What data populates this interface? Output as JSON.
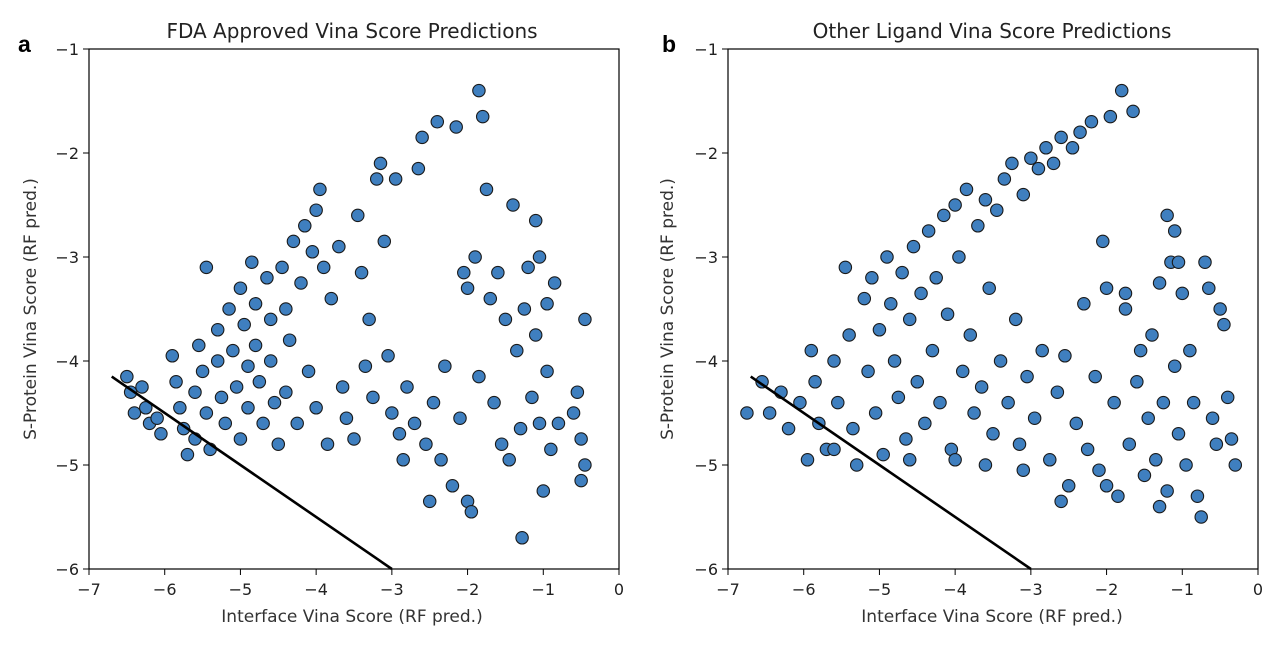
{
  "chart_data": [
    {
      "type": "scatter",
      "panel_letter": "a",
      "title": "FDA Approved Vina Score Predictions",
      "xlabel": "Interface Vina Score (RF pred.)",
      "ylabel": "S-Protein Vina Score (RF pred.)",
      "xlim": [
        -7,
        0
      ],
      "ylim": [
        -6,
        -1
      ],
      "xticks": [
        -7,
        -6,
        -5,
        -4,
        -3,
        -2,
        -1,
        0
      ],
      "xtick_labels": [
        "−7",
        "−6",
        "−5",
        "−4",
        "−3",
        "−2",
        "−1",
        "0"
      ],
      "yticks": [
        -6,
        -5,
        -4,
        -3,
        -2,
        -1
      ],
      "ytick_labels": [
        "−6",
        "−5",
        "−4",
        "−3",
        "−2",
        "−1"
      ],
      "grid": false,
      "marker_color": "#3f7fbf",
      "marker_edge": "#1a1a1a",
      "line": {
        "x": [
          -6.7,
          -3.0
        ],
        "y": [
          -4.15,
          -6.0
        ],
        "color": "#000000"
      },
      "points": [
        [
          -6.5,
          -4.15
        ],
        [
          -6.45,
          -4.3
        ],
        [
          -6.4,
          -4.5
        ],
        [
          -6.3,
          -4.25
        ],
        [
          -6.25,
          -4.45
        ],
        [
          -6.2,
          -4.6
        ],
        [
          -6.1,
          -4.55
        ],
        [
          -6.05,
          -4.7
        ],
        [
          -5.9,
          -3.95
        ],
        [
          -5.85,
          -4.2
        ],
        [
          -5.8,
          -4.45
        ],
        [
          -5.75,
          -4.65
        ],
        [
          -5.7,
          -4.9
        ],
        [
          -5.6,
          -4.75
        ],
        [
          -5.6,
          -4.3
        ],
        [
          -5.55,
          -3.85
        ],
        [
          -5.5,
          -4.1
        ],
        [
          -5.45,
          -3.1
        ],
        [
          -5.45,
          -4.5
        ],
        [
          -5.4,
          -4.85
        ],
        [
          -5.3,
          -3.7
        ],
        [
          -5.3,
          -4.0
        ],
        [
          -5.25,
          -4.35
        ],
        [
          -5.2,
          -4.6
        ],
        [
          -5.15,
          -3.5
        ],
        [
          -5.1,
          -3.9
        ],
        [
          -5.05,
          -4.25
        ],
        [
          -5.0,
          -4.75
        ],
        [
          -5.0,
          -3.3
        ],
        [
          -4.95,
          -3.65
        ],
        [
          -4.9,
          -4.05
        ],
        [
          -4.9,
          -4.45
        ],
        [
          -4.85,
          -3.05
        ],
        [
          -4.8,
          -3.45
        ],
        [
          -4.8,
          -3.85
        ],
        [
          -4.75,
          -4.2
        ],
        [
          -4.7,
          -4.6
        ],
        [
          -4.65,
          -3.2
        ],
        [
          -4.6,
          -3.6
        ],
        [
          -4.6,
          -4.0
        ],
        [
          -4.55,
          -4.4
        ],
        [
          -4.5,
          -4.8
        ],
        [
          -4.45,
          -3.1
        ],
        [
          -4.4,
          -3.5
        ],
        [
          -4.4,
          -4.3
        ],
        [
          -4.35,
          -3.8
        ],
        [
          -4.3,
          -2.85
        ],
        [
          -4.25,
          -4.6
        ],
        [
          -4.2,
          -3.25
        ],
        [
          -4.15,
          -2.7
        ],
        [
          -4.1,
          -4.1
        ],
        [
          -4.05,
          -2.95
        ],
        [
          -4.0,
          -2.55
        ],
        [
          -4.0,
          -4.45
        ],
        [
          -3.95,
          -2.35
        ],
        [
          -3.9,
          -3.1
        ],
        [
          -3.85,
          -4.8
        ],
        [
          -3.8,
          -3.4
        ],
        [
          -3.7,
          -2.9
        ],
        [
          -3.65,
          -4.25
        ],
        [
          -3.6,
          -4.55
        ],
        [
          -3.5,
          -4.75
        ],
        [
          -3.45,
          -2.6
        ],
        [
          -3.4,
          -3.15
        ],
        [
          -3.35,
          -4.05
        ],
        [
          -3.3,
          -3.6
        ],
        [
          -3.25,
          -4.35
        ],
        [
          -3.2,
          -2.25
        ],
        [
          -3.15,
          -2.1
        ],
        [
          -3.1,
          -2.85
        ],
        [
          -3.05,
          -3.95
        ],
        [
          -3.0,
          -4.5
        ],
        [
          -2.95,
          -2.25
        ],
        [
          -2.9,
          -4.7
        ],
        [
          -2.85,
          -4.95
        ],
        [
          -2.8,
          -4.25
        ],
        [
          -2.7,
          -4.6
        ],
        [
          -2.65,
          -2.15
        ],
        [
          -2.6,
          -1.85
        ],
        [
          -2.55,
          -4.8
        ],
        [
          -2.5,
          -5.35
        ],
        [
          -2.45,
          -4.4
        ],
        [
          -2.4,
          -1.7
        ],
        [
          -2.35,
          -4.95
        ],
        [
          -2.3,
          -4.05
        ],
        [
          -2.2,
          -5.2
        ],
        [
          -2.15,
          -1.75
        ],
        [
          -2.1,
          -4.55
        ],
        [
          -2.05,
          -3.15
        ],
        [
          -2.0,
          -3.3
        ],
        [
          -2.0,
          -5.35
        ],
        [
          -1.95,
          -5.45
        ],
        [
          -1.9,
          -3.0
        ],
        [
          -1.85,
          -1.4
        ],
        [
          -1.85,
          -4.15
        ],
        [
          -1.8,
          -1.65
        ],
        [
          -1.75,
          -2.35
        ],
        [
          -1.7,
          -3.4
        ],
        [
          -1.65,
          -4.4
        ],
        [
          -1.6,
          -3.15
        ],
        [
          -1.55,
          -4.8
        ],
        [
          -1.5,
          -3.6
        ],
        [
          -1.45,
          -4.95
        ],
        [
          -1.4,
          -2.5
        ],
        [
          -1.35,
          -3.9
        ],
        [
          -1.3,
          -4.65
        ],
        [
          -1.28,
          -5.7
        ],
        [
          -1.25,
          -3.5
        ],
        [
          -1.2,
          -3.1
        ],
        [
          -1.15,
          -4.35
        ],
        [
          -1.1,
          -2.65
        ],
        [
          -1.1,
          -3.75
        ],
        [
          -1.05,
          -4.6
        ],
        [
          -1.05,
          -3.0
        ],
        [
          -1.0,
          -5.25
        ],
        [
          -0.95,
          -4.1
        ],
        [
          -0.95,
          -3.45
        ],
        [
          -0.9,
          -4.85
        ],
        [
          -0.85,
          -3.25
        ],
        [
          -0.8,
          -4.6
        ],
        [
          -0.6,
          -4.5
        ],
        [
          -0.55,
          -4.3
        ],
        [
          -0.5,
          -4.75
        ],
        [
          -0.5,
          -5.15
        ],
        [
          -0.45,
          -3.6
        ],
        [
          -0.45,
          -5.0
        ]
      ]
    },
    {
      "type": "scatter",
      "panel_letter": "b",
      "title": "Other Ligand Vina Score Predictions",
      "xlabel": "Interface Vina Score (RF pred.)",
      "ylabel": "S-Protein Vina Score (RF pred.)",
      "xlim": [
        -7,
        0
      ],
      "ylim": [
        -6,
        -1
      ],
      "xticks": [
        -7,
        -6,
        -5,
        -4,
        -3,
        -2,
        -1,
        0
      ],
      "xtick_labels": [
        "−7",
        "−6",
        "−5",
        "−4",
        "−3",
        "−2",
        "−1",
        "0"
      ],
      "yticks": [
        -6,
        -5,
        -4,
        -3,
        -2,
        -1
      ],
      "ytick_labels": [
        "−6",
        "−5",
        "−4",
        "−3",
        "−2",
        "−1"
      ],
      "grid": false,
      "marker_color": "#3f7fbf",
      "marker_edge": "#1a1a1a",
      "line": {
        "x": [
          -6.7,
          -3.0
        ],
        "y": [
          -4.15,
          -6.0
        ],
        "color": "#000000"
      },
      "points": [
        [
          -6.75,
          -4.5
        ],
        [
          -6.55,
          -4.2
        ],
        [
          -6.45,
          -4.5
        ],
        [
          -6.3,
          -4.3
        ],
        [
          -6.2,
          -4.65
        ],
        [
          -6.05,
          -4.4
        ],
        [
          -5.95,
          -4.95
        ],
        [
          -5.9,
          -3.9
        ],
        [
          -5.85,
          -4.2
        ],
        [
          -5.8,
          -4.6
        ],
        [
          -5.7,
          -4.85
        ],
        [
          -5.6,
          -4.0
        ],
        [
          -5.55,
          -4.4
        ],
        [
          -5.45,
          -3.1
        ],
        [
          -5.4,
          -3.75
        ],
        [
          -5.35,
          -4.65
        ],
        [
          -5.3,
          -5.0
        ],
        [
          -5.2,
          -3.4
        ],
        [
          -5.15,
          -4.1
        ],
        [
          -5.1,
          -3.2
        ],
        [
          -5.05,
          -4.5
        ],
        [
          -5.0,
          -3.7
        ],
        [
          -4.95,
          -4.9
        ],
        [
          -4.9,
          -3.0
        ],
        [
          -4.85,
          -3.45
        ],
        [
          -4.8,
          -4.0
        ],
        [
          -4.75,
          -4.35
        ],
        [
          -4.7,
          -3.15
        ],
        [
          -4.65,
          -4.75
        ],
        [
          -4.6,
          -3.6
        ],
        [
          -4.55,
          -2.9
        ],
        [
          -4.5,
          -4.2
        ],
        [
          -4.45,
          -3.35
        ],
        [
          -4.4,
          -4.6
        ],
        [
          -4.35,
          -2.75
        ],
        [
          -4.3,
          -3.9
        ],
        [
          -4.25,
          -3.2
        ],
        [
          -4.2,
          -4.4
        ],
        [
          -4.15,
          -2.6
        ],
        [
          -4.1,
          -3.55
        ],
        [
          -4.05,
          -4.85
        ],
        [
          -4.0,
          -2.5
        ],
        [
          -3.95,
          -3.0
        ],
        [
          -3.9,
          -4.1
        ],
        [
          -3.85,
          -2.35
        ],
        [
          -3.8,
          -3.75
        ],
        [
          -3.75,
          -4.5
        ],
        [
          -3.7,
          -2.7
        ],
        [
          -3.65,
          -4.25
        ],
        [
          -3.6,
          -2.45
        ],
        [
          -3.55,
          -3.3
        ],
        [
          -3.5,
          -4.7
        ],
        [
          -3.45,
          -2.55
        ],
        [
          -3.4,
          -4.0
        ],
        [
          -3.35,
          -2.25
        ],
        [
          -3.3,
          -4.4
        ],
        [
          -3.25,
          -2.1
        ],
        [
          -3.2,
          -3.6
        ],
        [
          -3.15,
          -4.8
        ],
        [
          -3.1,
          -2.4
        ],
        [
          -3.05,
          -4.15
        ],
        [
          -3.0,
          -2.05
        ],
        [
          -2.95,
          -4.55
        ],
        [
          -2.9,
          -2.15
        ],
        [
          -2.85,
          -3.9
        ],
        [
          -2.8,
          -1.95
        ],
        [
          -2.75,
          -4.95
        ],
        [
          -2.7,
          -2.1
        ],
        [
          -2.65,
          -4.3
        ],
        [
          -2.6,
          -1.85
        ],
        [
          -2.55,
          -3.95
        ],
        [
          -2.5,
          -5.2
        ],
        [
          -2.45,
          -1.95
        ],
        [
          -2.4,
          -4.6
        ],
        [
          -2.35,
          -1.8
        ],
        [
          -2.3,
          -3.45
        ],
        [
          -2.25,
          -4.85
        ],
        [
          -2.2,
          -1.7
        ],
        [
          -2.15,
          -4.15
        ],
        [
          -2.1,
          -5.05
        ],
        [
          -2.05,
          -2.85
        ],
        [
          -2.0,
          -3.3
        ],
        [
          -1.95,
          -1.65
        ],
        [
          -1.9,
          -4.4
        ],
        [
          -1.85,
          -5.3
        ],
        [
          -1.8,
          -1.4
        ],
        [
          -1.75,
          -3.35
        ],
        [
          -1.7,
          -4.8
        ],
        [
          -1.65,
          -1.6
        ],
        [
          -1.6,
          -4.2
        ],
        [
          -1.55,
          -3.9
        ],
        [
          -1.5,
          -5.1
        ],
        [
          -1.45,
          -4.55
        ],
        [
          -1.4,
          -3.75
        ],
        [
          -1.35,
          -4.95
        ],
        [
          -1.3,
          -3.25
        ],
        [
          -1.25,
          -4.4
        ],
        [
          -1.2,
          -2.6
        ],
        [
          -1.2,
          -5.25
        ],
        [
          -1.15,
          -3.05
        ],
        [
          -1.1,
          -4.05
        ],
        [
          -1.1,
          -2.75
        ],
        [
          -1.05,
          -4.7
        ],
        [
          -1.0,
          -3.35
        ],
        [
          -0.95,
          -5.0
        ],
        [
          -0.9,
          -3.9
        ],
        [
          -0.85,
          -4.4
        ],
        [
          -0.8,
          -5.3
        ],
        [
          -0.75,
          -5.5
        ],
        [
          -0.7,
          -3.05
        ],
        [
          -0.65,
          -3.3
        ],
        [
          -0.6,
          -4.55
        ],
        [
          -0.55,
          -4.8
        ],
        [
          -0.5,
          -3.5
        ],
        [
          -0.45,
          -3.65
        ],
        [
          -0.4,
          -4.35
        ],
        [
          -0.35,
          -4.75
        ],
        [
          -0.3,
          -5.0
        ],
        [
          -1.3,
          -5.4
        ],
        [
          -2.0,
          -5.2
        ],
        [
          -2.6,
          -5.35
        ],
        [
          -3.1,
          -5.05
        ],
        [
          -3.6,
          -5.0
        ],
        [
          -4.0,
          -4.95
        ],
        [
          -4.6,
          -4.95
        ],
        [
          -5.6,
          -4.85
        ],
        [
          -1.75,
          -3.5
        ],
        [
          -1.05,
          -3.05
        ]
      ]
    }
  ]
}
